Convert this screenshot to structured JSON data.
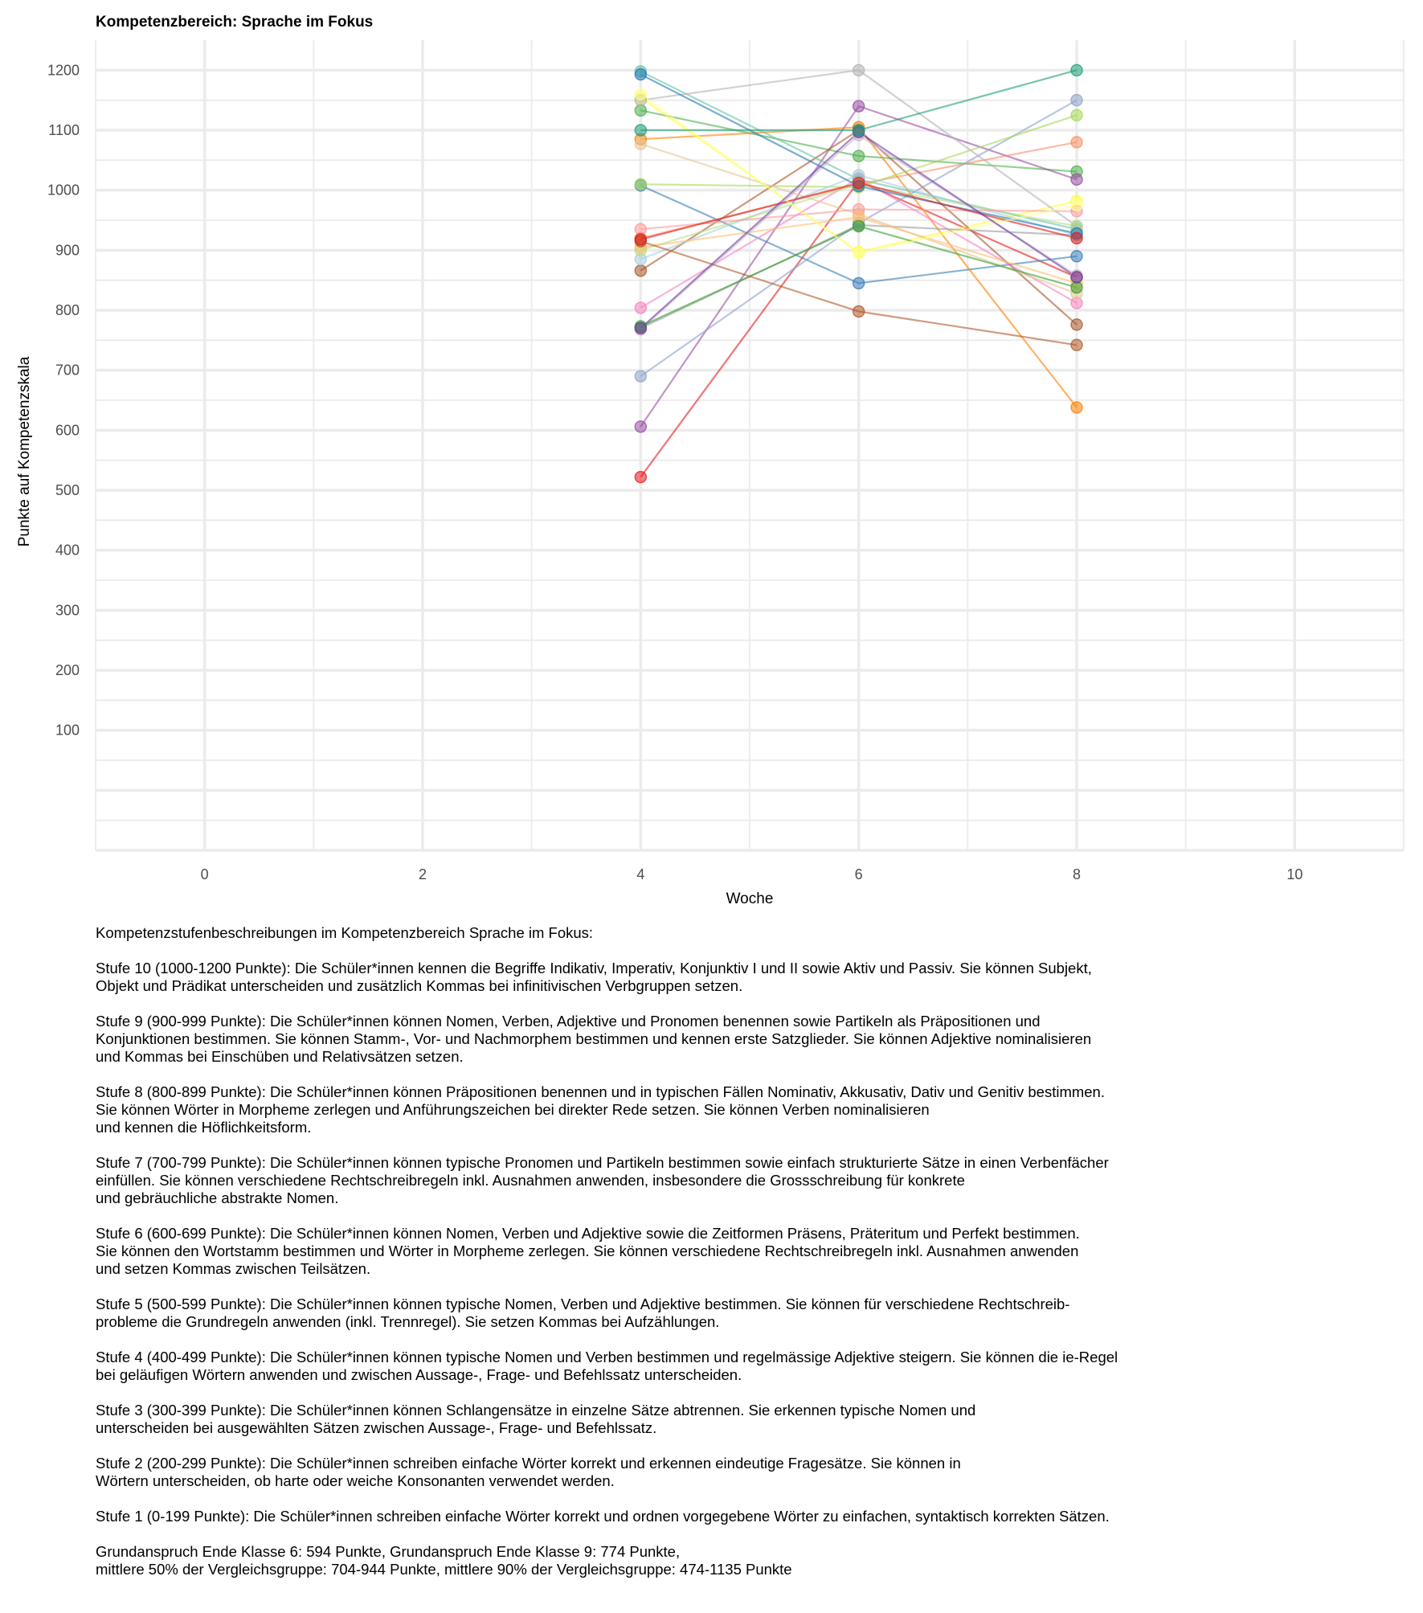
{
  "chart_data": {
    "type": "line",
    "title": "Kompetenzbereich: Sprache im Fokus",
    "xlabel": "Woche",
    "ylabel": "Punkte auf Kompetenzskala",
    "xlim": [
      -1,
      11
    ],
    "ylim": [
      -100,
      1250
    ],
    "x_ticks": [
      0,
      2,
      4,
      6,
      8,
      10
    ],
    "y_ticks": [
      100,
      200,
      300,
      400,
      500,
      600,
      700,
      800,
      900,
      1000,
      1100,
      1200
    ],
    "x": [
      4,
      6,
      8
    ],
    "series": [
      {
        "color": "#e41a1c",
        "values": [
          522,
          1015,
          855
        ]
      },
      {
        "color": "#377eb8",
        "values": [
          1008,
          845,
          890
        ]
      },
      {
        "color": "#4daf4a",
        "values": [
          1133,
          1057,
          1031
        ]
      },
      {
        "color": "#984ea3",
        "values": [
          606,
          1140,
          1018
        ]
      },
      {
        "color": "#ff7f00",
        "values": [
          1085,
          1105,
          638
        ]
      },
      {
        "color": "#ffff33",
        "values": [
          1155,
          897,
          982
        ]
      },
      {
        "color": "#a65628",
        "values": [
          866,
          1100,
          776
        ]
      },
      {
        "color": "#f781bf",
        "values": [
          804,
          1020,
          812
        ]
      },
      {
        "color": "#999999",
        "values": [
          770,
          942,
          925
        ]
      },
      {
        "color": "#66c2a5",
        "values": [
          1198,
          1018,
          935
        ]
      },
      {
        "color": "#fc8d62",
        "values": [
          920,
          1010,
          1080
        ]
      },
      {
        "color": "#8da0cb",
        "values": [
          690,
          945,
          1150
        ]
      },
      {
        "color": "#a6d854",
        "values": [
          1010,
          1005,
          1125
        ]
      },
      {
        "color": "#e5c494",
        "values": [
          1077,
          960,
          828
        ]
      },
      {
        "color": "#b3b3b3",
        "values": [
          1150,
          1200,
          940
        ]
      },
      {
        "color": "#a6cee3",
        "values": [
          885,
          1025,
          925
        ]
      },
      {
        "color": "#b2df8a",
        "values": [
          900,
          1010,
          940
        ]
      },
      {
        "color": "#fb9a99",
        "values": [
          935,
          968,
          965
        ]
      },
      {
        "color": "#fdbf6f",
        "values": [
          905,
          955,
          845
        ]
      },
      {
        "color": "#cab2d6",
        "values": [
          768,
          1092,
          858
        ]
      },
      {
        "color": "#1f78b4",
        "values": [
          1193,
          1007,
          928
        ]
      },
      {
        "color": "#33a02c",
        "values": [
          773,
          940,
          838
        ]
      },
      {
        "color": "#b15928",
        "values": [
          915,
          798,
          742
        ]
      },
      {
        "color": "#e31a1c",
        "values": [
          918,
          1012,
          920
        ]
      },
      {
        "color": "#ffff99",
        "values": [
          1160,
          895,
          975
        ]
      },
      {
        "color": "#6a3d9a",
        "values": [
          770,
          1097,
          855
        ]
      },
      {
        "color": "#1b9e77",
        "values": [
          1100,
          1100,
          1200
        ]
      }
    ]
  },
  "description": {
    "intro": "Kompetenzstufenbeschreibungen im Kompetenzbereich Sprache im Fokus:",
    "levels": [
      "Stufe 10 (1000-1200 Punkte): Die Schüler*innen kennen die Begriffe Indikativ, Imperativ, Konjunktiv I und II sowie Aktiv und Passiv. Sie können Subjekt,\nObjekt und Prädikat unterscheiden und zusätzlich Kommas bei infinitivischen Verbgruppen setzen.",
      "Stufe 9 (900-999 Punkte): Die Schüler*innen können Nomen, Verben, Adjektive und Pronomen benennen sowie Partikeln als Präpositionen und\nKonjunktionen bestimmen. Sie können Stamm-, Vor- und Nachmorphem bestimmen und kennen erste Satzglieder. Sie können Adjektive nominalisieren\nund Kommas bei Einschüben und Relativsätzen setzen.",
      "Stufe 8 (800-899 Punkte): Die Schüler*innen können Präpositionen benennen und in typischen Fällen Nominativ, Akkusativ, Dativ und Genitiv bestimmen.\nSie können Wörter in Morpheme zerlegen und Anführungszeichen bei direkter Rede setzen. Sie können Verben nominalisieren\nund kennen die Höflichkeitsform.",
      "Stufe 7 (700-799 Punkte): Die Schüler*innen können typische Pronomen und Partikeln bestimmen sowie einfach strukturierte Sätze in einen Verbenfächer\neinfüllen. Sie können verschiedene Rechtschreibregeln inkl. Ausnahmen anwenden, insbesondere die Grossschreibung für konkrete\nund gebräuchliche abstrakte Nomen.",
      "Stufe 6 (600-699 Punkte): Die Schüler*innen können Nomen, Verben und Adjektive sowie die Zeitformen Präsens, Präteritum und Perfekt bestimmen.\nSie können den Wortstamm bestimmen und Wörter in Morpheme zerlegen. Sie können verschiedene Rechtschreibregeln inkl. Ausnahmen anwenden\nund setzen Kommas zwischen Teilsätzen.",
      "Stufe 5 (500-599 Punkte): Die Schüler*innen können typische Nomen, Verben und Adjektive bestimmen. Sie können für verschiedene Rechtschreib-\nprobleme die Grundregeln anwenden (inkl. Trennregel). Sie setzen Kommas bei Aufzählungen.",
      "Stufe 4 (400-499 Punkte): Die Schüler*innen können typische Nomen und Verben bestimmen und regelmässige Adjektive steigern. Sie können die ie-Regel\nbei geläufigen Wörtern anwenden und zwischen Aussage-, Frage- und Befehlssatz unterscheiden.",
      "Stufe 3 (300-399 Punkte): Die Schüler*innen können Schlangensätze in einzelne Sätze abtrennen. Sie erkennen typische Nomen und\nunterscheiden bei ausgewählten Sätzen zwischen Aussage-, Frage- und Befehlssatz.",
      "Stufe 2 (200-299 Punkte): Die Schüler*innen schreiben einfache Wörter korrekt und erkennen eindeutige Fragesätze. Sie können in\nWörtern unterscheiden, ob harte oder weiche Konsonanten verwendet werden.",
      "Stufe 1 (0-199 Punkte): Die Schüler*innen schreiben einfache Wörter korrekt und ordnen vorgegebene Wörter zu einfachen, syntaktisch korrekten Sätzen."
    ],
    "footer": "Grundanspruch Ende Klasse 6: 594 Punkte, Grundanspruch Ende Klasse 9: 774 Punkte,\nmittlere 50% der Vergleichsgruppe: 704-944 Punkte, mittlere 90% der Vergleichsgruppe: 474-1135 Punkte"
  }
}
